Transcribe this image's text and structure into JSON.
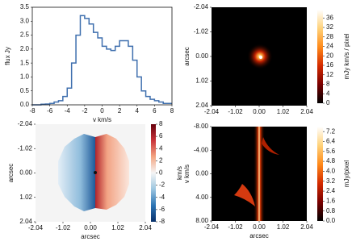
{
  "chart_data": [
    {
      "type": "line",
      "step": true,
      "color": "#3f6fae",
      "ylabel": "flux Jy",
      "xlabel": "v km/s",
      "x": [
        -8,
        -7.5,
        -7,
        -6.5,
        -6,
        -5.5,
        -5,
        -4.5,
        -4,
        -3.5,
        -3,
        -2.5,
        -2,
        -1.5,
        -1,
        -0.5,
        0,
        0.5,
        1,
        1.5,
        2,
        2.5,
        3,
        3.5,
        4,
        4.5,
        5,
        5.5,
        6,
        6.5,
        7,
        7.5,
        8
      ],
      "values": [
        0.0,
        0.0,
        0.02,
        0.03,
        0.05,
        0.1,
        0.15,
        0.3,
        0.6,
        1.5,
        2.5,
        3.2,
        3.1,
        2.9,
        2.6,
        2.4,
        2.1,
        2.0,
        1.95,
        2.1,
        2.3,
        2.3,
        2.1,
        1.6,
        1.0,
        0.5,
        0.3,
        0.2,
        0.15,
        0.1,
        0.05,
        0.05,
        0.05
      ],
      "xlim": [
        -8,
        8
      ],
      "xticks": [
        -8,
        -6,
        -4,
        -2,
        0,
        2,
        4,
        6,
        8
      ],
      "ylim": [
        0,
        3.5
      ],
      "yticks": [
        {
          "value": 0,
          "label": "0.0"
        },
        0.5,
        {
          "value": 1,
          "label": "1.0"
        },
        1.5,
        {
          "value": 2,
          "label": "2.0"
        },
        2.5,
        {
          "value": 3,
          "label": "3.0"
        },
        3.5
      ]
    },
    {
      "type": "image",
      "ylabel": "arcsec",
      "colorbar_label": "mJy km/s / pixel",
      "xlim": [
        -2.04,
        2.04
      ],
      "xticks": [
        -2.04,
        -1.02,
        {
          "value": 0,
          "label": "0.00"
        },
        1.02,
        2.04
      ],
      "ylim": [
        2.04,
        -2.04
      ],
      "yticks": [
        -2.04,
        -1.02,
        {
          "value": 0,
          "label": "0.00"
        },
        1.02,
        2.04
      ],
      "colormap": [
        "#000000",
        "#7a0000",
        "#d42a00",
        "#ff8a1a",
        "#ffd27a",
        "#ffffff"
      ],
      "clim": [
        0,
        39.5
      ],
      "cticks": [
        0,
        4,
        8,
        12,
        16,
        20,
        24,
        28,
        32,
        36
      ]
    },
    {
      "type": "image",
      "xlabel": "arcsec",
      "ylabel": "arcsec",
      "colorbar_label": "km/s",
      "xlim": [
        -2.04,
        2.04
      ],
      "xticks": [
        -2.04,
        -1.02,
        {
          "value": 0,
          "label": "0.00"
        },
        1.02,
        2.04
      ],
      "ylim": [
        2.04,
        -2.04
      ],
      "yticks": [
        -2.04,
        -1.02,
        {
          "value": 0,
          "label": "0.00"
        },
        1.02,
        2.04
      ],
      "colormap": [
        "#08306b",
        "#2c74b4",
        "#9cc6e0",
        "#f5f5f5",
        "#f4a582",
        "#c9333a",
        "#67000d"
      ],
      "clim": [
        -8,
        8
      ],
      "cticks": [
        -8,
        -6,
        -4,
        -2,
        0,
        2,
        4,
        6,
        8
      ]
    },
    {
      "type": "image",
      "xlabel": "arcsec",
      "ylabel": "v km/s",
      "colorbar_label": "mJy/pixel",
      "xlim": [
        -2.04,
        2.04
      ],
      "xticks": [
        -2.04,
        -1.02,
        {
          "value": 0,
          "label": "0.00"
        },
        1.02,
        2.04
      ],
      "ylim": [
        8,
        -8
      ],
      "yticks": [
        {
          "value": -8,
          "label": "-8.00"
        },
        {
          "value": -4,
          "label": "-4.00"
        },
        {
          "value": 0,
          "label": "0.00"
        },
        {
          "value": 4,
          "label": "4.00"
        },
        {
          "value": 8,
          "label": "8.00"
        }
      ],
      "colormap": [
        "#000000",
        "#7a0000",
        "#d42a00",
        "#ff8a1a",
        "#ffd27a",
        "#ffffff"
      ],
      "clim": [
        0,
        7.6
      ],
      "cticks": [
        {
          "value": 0,
          "label": "0.0"
        },
        0.8,
        1.6,
        2.4,
        3.2,
        {
          "value": 4,
          "label": "4.0"
        },
        4.8,
        5.6,
        6.4,
        7.2
      ]
    }
  ]
}
